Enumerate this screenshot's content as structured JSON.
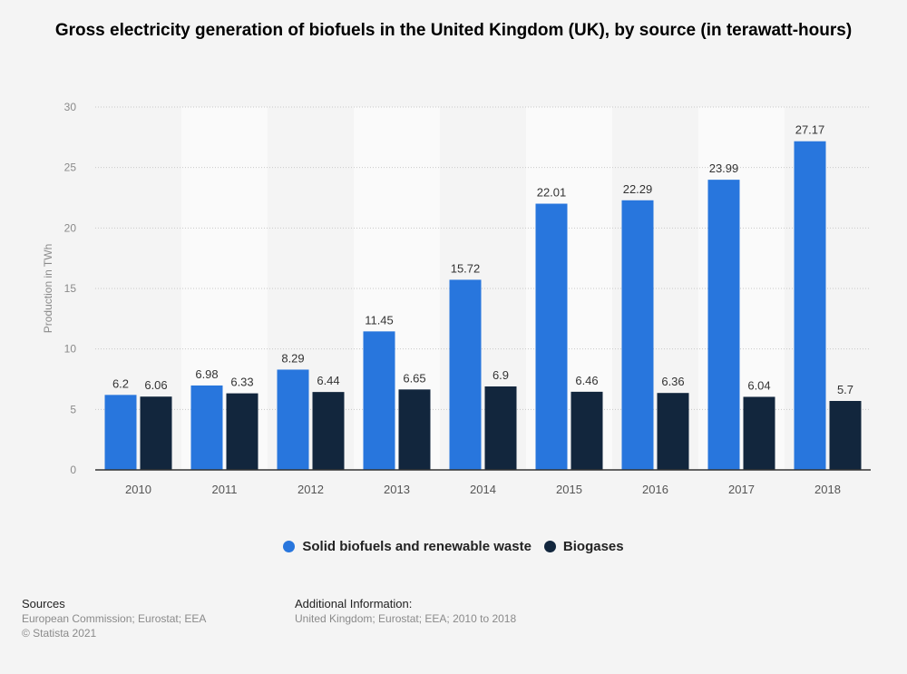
{
  "title": "Gross electricity generation of biofuels in the United Kingdom (UK), by source (in terawatt-hours)",
  "chart_data": {
    "type": "bar",
    "title": "Gross electricity generation of biofuels in the United Kingdom (UK), by source (in terawatt-hours)",
    "xlabel": "",
    "ylabel": "Production in TWh",
    "ylim": [
      0,
      30
    ],
    "yticks": [
      0,
      5,
      10,
      15,
      20,
      25,
      30
    ],
    "grid": true,
    "legend_position": "bottom",
    "categories": [
      "2010",
      "2011",
      "2012",
      "2013",
      "2014",
      "2015",
      "2016",
      "2017",
      "2018"
    ],
    "series": [
      {
        "name": "Solid biofuels and renewable waste",
        "color": "#2876dd",
        "values": [
          6.2,
          6.98,
          8.29,
          11.45,
          15.72,
          22.01,
          22.29,
          23.99,
          27.17
        ]
      },
      {
        "name": "Biogases",
        "color": "#12263d",
        "values": [
          6.06,
          6.33,
          6.44,
          6.65,
          6.9,
          6.46,
          6.36,
          6.04,
          5.7
        ]
      }
    ]
  },
  "legend": [
    {
      "label": "Solid biofuels and renewable waste",
      "color": "#2876dd"
    },
    {
      "label": "Biogases",
      "color": "#12263d"
    }
  ],
  "footer": {
    "sources_heading": "Sources",
    "sources_text": "European Commission; Eurostat; EEA",
    "copyright": "© Statista 2021",
    "additional_heading": "Additional Information:",
    "additional_text": "United Kingdom; Eurostat; EEA; 2010 to 2018"
  }
}
